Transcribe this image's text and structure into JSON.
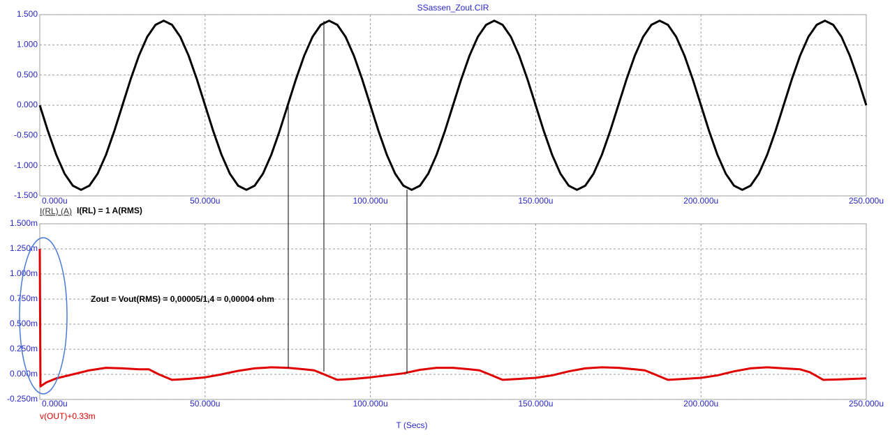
{
  "chart_data": [
    {
      "type": "line",
      "title": "SSassen_Zout.CIR",
      "annotation": "I(RL) = 1 A(RMS)",
      "x": [
        0,
        2.5,
        5,
        7.5,
        10,
        12.5,
        15,
        17.5,
        20,
        22.5,
        25,
        27.5,
        30,
        32.5,
        35,
        37.5,
        40,
        42.5,
        45,
        47.5,
        50,
        52.5,
        55,
        57.5,
        60,
        62.5,
        65,
        67.5,
        70,
        72.5,
        75,
        77.5,
        80,
        82.5,
        85,
        87.5,
        90,
        92.5,
        95,
        97.5,
        100,
        102.5,
        105,
        107.5,
        110,
        112.5,
        115,
        117.5,
        120,
        122.5,
        125,
        127.5,
        130,
        132.5,
        135,
        137.5,
        140,
        142.5,
        145,
        147.5,
        150,
        152.5,
        155,
        157.5,
        160,
        162.5,
        165,
        167.5,
        170,
        172.5,
        175,
        177.5,
        180,
        182.5,
        185,
        187.5,
        190,
        192.5,
        195,
        197.5,
        200,
        202.5,
        205,
        207.5,
        210,
        212.5,
        215,
        217.5,
        220,
        222.5,
        225,
        227.5,
        230,
        232.5,
        235,
        237.5,
        240,
        242.5,
        245,
        247.5,
        250
      ],
      "series": [
        {
          "name": "I(RL) (A)",
          "color": "#000000",
          "values": [
            0,
            -0.433,
            -0.823,
            -1.133,
            -1.331,
            -1.4,
            -1.331,
            -1.133,
            -0.823,
            -0.433,
            0,
            0.433,
            0.823,
            1.133,
            1.331,
            1.4,
            1.331,
            1.133,
            0.823,
            0.433,
            0,
            -0.433,
            -0.823,
            -1.133,
            -1.331,
            -1.4,
            -1.331,
            -1.133,
            -0.823,
            -0.433,
            0,
            0.433,
            0.823,
            1.133,
            1.331,
            1.4,
            1.331,
            1.133,
            0.823,
            0.433,
            0,
            -0.433,
            -0.823,
            -1.133,
            -1.331,
            -1.4,
            -1.331,
            -1.133,
            -0.823,
            -0.433,
            0,
            0.433,
            0.823,
            1.133,
            1.331,
            1.4,
            1.331,
            1.133,
            0.823,
            0.433,
            0,
            -0.433,
            -0.823,
            -1.133,
            -1.331,
            -1.4,
            -1.331,
            -1.133,
            -0.823,
            -0.433,
            0,
            0.433,
            0.823,
            1.133,
            1.331,
            1.4,
            1.331,
            1.133,
            0.823,
            0.433,
            0,
            -0.433,
            -0.823,
            -1.133,
            -1.331,
            -1.4,
            -1.331,
            -1.133,
            -0.823,
            -0.433,
            0,
            0.433,
            0.823,
            1.133,
            1.331,
            1.4,
            1.331,
            1.133,
            0.823,
            0.433,
            0
          ]
        }
      ],
      "xlim": [
        0,
        250
      ],
      "xticks": [
        {
          "value": 0,
          "label": "0.000u"
        },
        {
          "value": 50,
          "label": "50.000u"
        },
        {
          "value": 100,
          "label": "100.000u"
        },
        {
          "value": 150,
          "label": "150.000u"
        },
        {
          "value": 200,
          "label": "200.000u"
        },
        {
          "value": 250,
          "label": "250.000u"
        }
      ],
      "ylim": [
        -1.5,
        1.5
      ],
      "yticks": [
        {
          "value": 1.5,
          "label": "1.500"
        },
        {
          "value": 1,
          "label": "1.000"
        },
        {
          "value": 0.5,
          "label": "0.500"
        },
        {
          "value": 0,
          "label": "0.000"
        },
        {
          "value": -0.5,
          "label": "-0.500"
        },
        {
          "value": -1,
          "label": "-1.000"
        },
        {
          "value": -1.5,
          "label": "-1.500"
        }
      ],
      "grid": true
    },
    {
      "type": "line",
      "xlabel": "T (Secs)",
      "annotation": "Zout = Vout(RMS) = 0,00005/1,4 = 0,00004 ohm",
      "x": [
        0,
        0.2,
        2,
        5,
        10,
        15,
        20,
        25,
        30,
        33,
        36,
        40,
        45,
        50,
        55,
        60,
        65,
        70,
        75,
        80,
        83,
        86,
        90,
        95,
        100,
        105,
        110,
        115,
        120,
        125,
        130,
        133,
        136,
        140,
        145,
        150,
        155,
        160,
        165,
        170,
        175,
        180,
        183,
        186,
        190,
        195,
        200,
        205,
        210,
        215,
        220,
        225,
        230,
        233,
        237,
        242,
        250
      ],
      "series": [
        {
          "name": "v(OUT)+0.33m",
          "color": "#e00000",
          "values": [
            1.25,
            -0.12,
            -0.08,
            -0.04,
            0,
            0.04,
            0.065,
            0.06,
            0.05,
            0.05,
            0,
            -0.055,
            -0.045,
            -0.03,
            0,
            0.035,
            0.06,
            0.07,
            0.065,
            0.05,
            0.04,
            0,
            -0.055,
            -0.045,
            -0.03,
            -0.01,
            0.01,
            0.045,
            0.065,
            0.065,
            0.05,
            0.04,
            0,
            -0.055,
            -0.045,
            -0.035,
            -0.01,
            0.03,
            0.06,
            0.07,
            0.065,
            0.05,
            0.04,
            0,
            -0.055,
            -0.045,
            -0.035,
            -0.01,
            0.03,
            0.06,
            0.07,
            0.06,
            0.05,
            0.02,
            -0.055,
            -0.05,
            -0.04
          ]
        }
      ],
      "xlim": [
        0,
        250
      ],
      "xticks": [
        {
          "value": 0,
          "label": "0.000u"
        },
        {
          "value": 50,
          "label": "50.000u"
        },
        {
          "value": 100,
          "label": "100.000u"
        },
        {
          "value": 150,
          "label": "150.000u"
        },
        {
          "value": 200,
          "label": "200.000u"
        },
        {
          "value": 250,
          "label": "250.000u"
        }
      ],
      "ylim": [
        -0.25,
        1.5
      ],
      "yticks": [
        {
          "value": 1.5,
          "label": "1.500m"
        },
        {
          "value": 1.25,
          "label": "1.250m"
        },
        {
          "value": 1,
          "label": "1.000m"
        },
        {
          "value": 0.75,
          "label": "0.750m"
        },
        {
          "value": 0.5,
          "label": "0.500m"
        },
        {
          "value": 0.25,
          "label": "0.250m"
        },
        {
          "value": 0,
          "label": "0.000m"
        },
        {
          "value": -0.25,
          "label": "-0.250m"
        }
      ],
      "grid": true
    }
  ]
}
